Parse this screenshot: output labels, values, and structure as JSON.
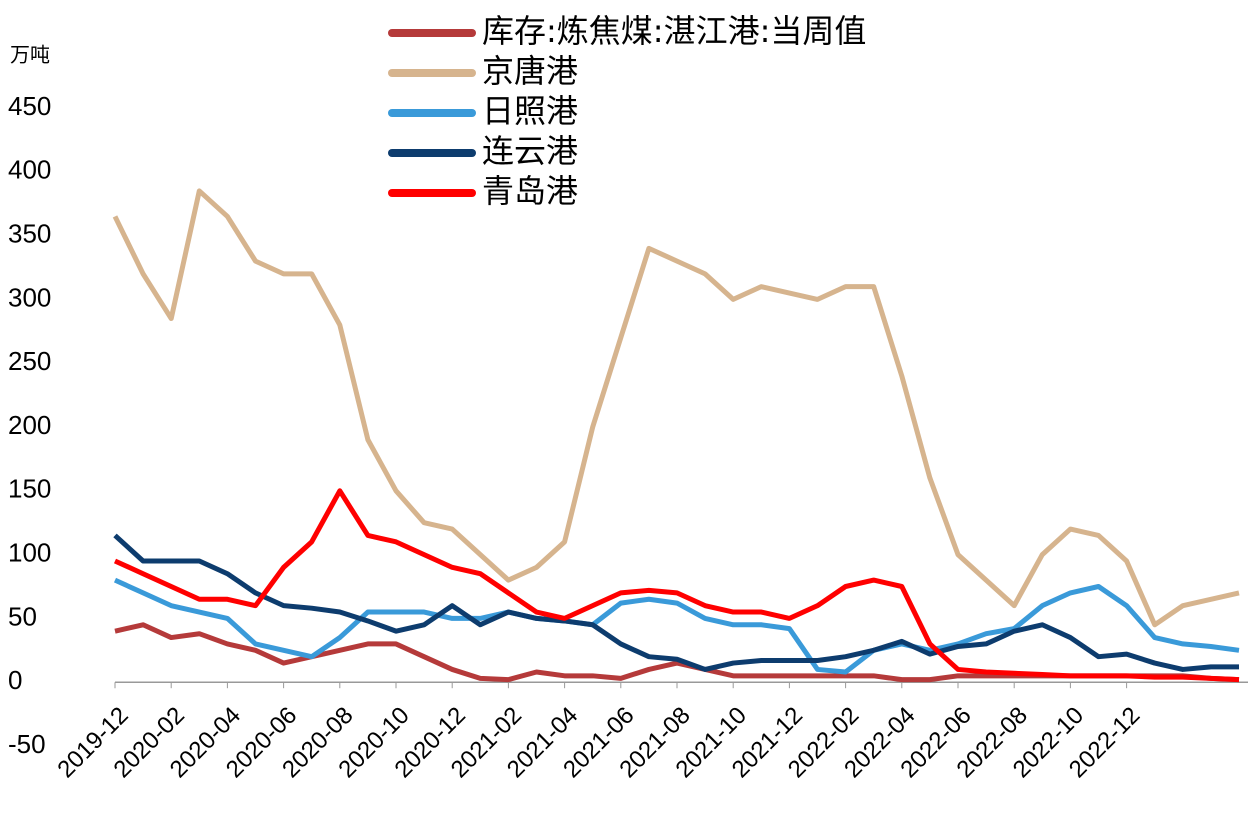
{
  "chart_data": {
    "type": "line",
    "y_label": "万吨",
    "categories": [
      "2019-12",
      null,
      "2020-02",
      null,
      "2020-04",
      null,
      "2020-06",
      null,
      "2020-08",
      null,
      "2020-10",
      null,
      "2020-12",
      null,
      "2021-02",
      null,
      "2021-04",
      null,
      "2021-06",
      null,
      "2021-08",
      null,
      "2021-10",
      null,
      "2021-12",
      null,
      "2022-02",
      null,
      "2022-04",
      null,
      "2022-06",
      null,
      "2022-08",
      null,
      "2022-10",
      null,
      "2022-12",
      null,
      null,
      null,
      null
    ],
    "series": [
      {
        "name": "库存:炼焦煤:湛江港:当周值",
        "color": "#b53a3a",
        "values": [
          40,
          45,
          35,
          38,
          30,
          25,
          15,
          20,
          25,
          30,
          30,
          20,
          10,
          3,
          2,
          8,
          5,
          5,
          3,
          10,
          15,
          10,
          5,
          5,
          5,
          5,
          5,
          5,
          2,
          2,
          5,
          5,
          5,
          5,
          5,
          5,
          5,
          5,
          5,
          3,
          2
        ]
      },
      {
        "name": "京唐港",
        "color": "#d6b48e",
        "values": [
          365,
          320,
          285,
          385,
          365,
          330,
          320,
          320,
          280,
          190,
          150,
          125,
          120,
          100,
          80,
          90,
          110,
          200,
          270,
          340,
          330,
          320,
          300,
          310,
          305,
          300,
          310,
          310,
          240,
          160,
          100,
          80,
          60,
          100,
          120,
          115,
          95,
          45,
          60,
          65,
          70
        ]
      },
      {
        "name": "日照港",
        "color": "#3a9ad9",
        "values": [
          80,
          70,
          60,
          55,
          50,
          30,
          25,
          20,
          35,
          55,
          55,
          55,
          50,
          50,
          55,
          50,
          48,
          45,
          62,
          65,
          62,
          50,
          45,
          45,
          42,
          10,
          8,
          25,
          30,
          25,
          30,
          38,
          42,
          60,
          70,
          75,
          60,
          35,
          30,
          28,
          25
        ]
      },
      {
        "name": "连云港",
        "color": "#0d3c6e",
        "values": [
          115,
          95,
          95,
          95,
          85,
          70,
          60,
          58,
          55,
          48,
          40,
          45,
          60,
          45,
          55,
          50,
          48,
          45,
          30,
          20,
          18,
          10,
          15,
          17,
          17,
          17,
          20,
          25,
          32,
          22,
          28,
          30,
          40,
          45,
          35,
          20,
          22,
          15,
          10,
          12,
          12
        ]
      },
      {
        "name": "青岛港",
        "color": "#ff0000",
        "values": [
          95,
          85,
          75,
          65,
          65,
          60,
          90,
          110,
          150,
          115,
          110,
          100,
          90,
          85,
          70,
          55,
          50,
          60,
          70,
          72,
          70,
          60,
          55,
          55,
          50,
          60,
          75,
          80,
          75,
          30,
          10,
          8,
          7,
          6,
          5,
          5,
          5,
          4,
          4,
          3,
          2
        ]
      }
    ],
    "ylim": [
      -50,
      450
    ],
    "yticks": [
      -50,
      0,
      50,
      100,
      150,
      200,
      250,
      300,
      350,
      400,
      450
    ]
  }
}
